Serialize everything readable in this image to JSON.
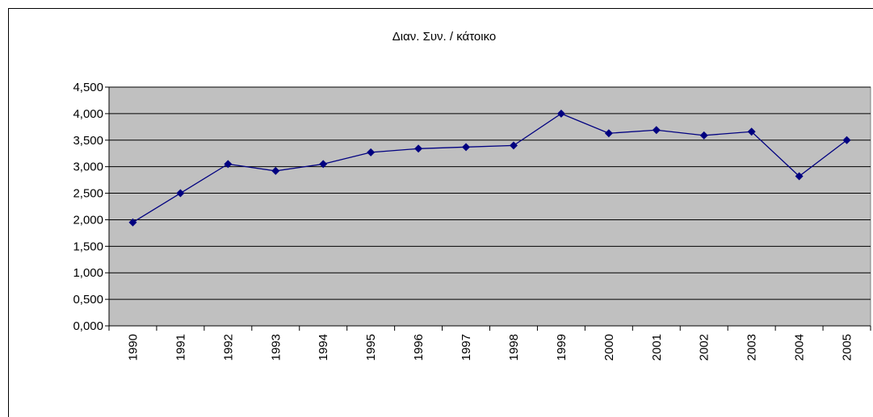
{
  "chart_data": {
    "type": "line",
    "title": "Διαν. Συν. / κάτοικο",
    "categories": [
      "1990",
      "1991",
      "1992",
      "1993",
      "1994",
      "1995",
      "1996",
      "1997",
      "1998",
      "1999",
      "2000",
      "2001",
      "2002",
      "2003",
      "2004",
      "2005"
    ],
    "values": [
      1.95,
      2.5,
      3.05,
      2.92,
      3.05,
      3.27,
      3.34,
      3.37,
      3.4,
      4.0,
      3.63,
      3.69,
      3.59,
      3.66,
      2.82,
      3.5
    ],
    "color": "#000080",
    "ylim": [
      0,
      4.5
    ],
    "yticks": [
      {
        "value": 0,
        "label": "0,000"
      },
      {
        "value": 0.5,
        "label": "0,500"
      },
      {
        "value": 1,
        "label": "1,000"
      },
      {
        "value": 1.5,
        "label": "1,500"
      },
      {
        "value": 2,
        "label": "2,000"
      },
      {
        "value": 2.5,
        "label": "2,500"
      },
      {
        "value": 3,
        "label": "3,000"
      },
      {
        "value": 3.5,
        "label": "3,500"
      },
      {
        "value": 4,
        "label": "4,000"
      },
      {
        "value": 4.5,
        "label": "4,500"
      }
    ],
    "grid": true
  }
}
